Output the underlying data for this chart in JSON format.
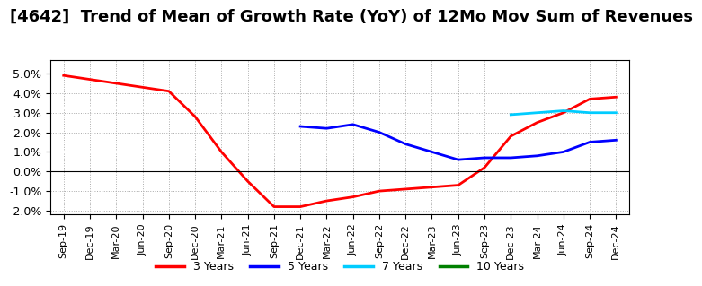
{
  "title": "[4642]  Trend of Mean of Growth Rate (YoY) of 12Mo Mov Sum of Revenues",
  "title_fontsize": 13,
  "background_color": "#ffffff",
  "grid_color": "#aaaaaa",
  "ylim": [
    -0.022,
    0.057
  ],
  "yticks": [
    -0.02,
    -0.01,
    0.0,
    0.01,
    0.02,
    0.03,
    0.04,
    0.05
  ],
  "x_ticks_labels": [
    "Sep-19",
    "Dec-19",
    "Mar-20",
    "Jun-20",
    "Sep-20",
    "Dec-20",
    "Mar-21",
    "Jun-21",
    "Sep-21",
    "Dec-21",
    "Mar-22",
    "Jun-22",
    "Sep-22",
    "Dec-22",
    "Mar-23",
    "Jun-23",
    "Sep-23",
    "Dec-23",
    "Mar-24",
    "Jun-24",
    "Sep-24",
    "Dec-24"
  ],
  "series": {
    "3 Years": {
      "color": "#ff0000",
      "x": [
        "Sep-19",
        "Dec-19",
        "Mar-20",
        "Jun-20",
        "Sep-20",
        "Dec-20",
        "Mar-21",
        "Jun-21",
        "Sep-21",
        "Dec-21",
        "Mar-22",
        "Jun-22",
        "Sep-22",
        "Dec-22",
        "Mar-23",
        "Jun-23",
        "Sep-23",
        "Dec-23",
        "Mar-24",
        "Jun-24",
        "Sep-24",
        "Dec-24"
      ],
      "y": [
        0.049,
        0.047,
        0.045,
        0.043,
        0.041,
        0.028,
        0.01,
        -0.005,
        -0.018,
        -0.018,
        -0.015,
        -0.013,
        -0.01,
        -0.009,
        -0.008,
        -0.007,
        0.002,
        0.018,
        0.025,
        0.03,
        0.037,
        0.038
      ]
    },
    "5 Years": {
      "color": "#0000ff",
      "x": [
        "Dec-21",
        "Mar-22",
        "Jun-22",
        "Sep-22",
        "Dec-22",
        "Mar-23",
        "Jun-23",
        "Sep-23",
        "Dec-23",
        "Mar-24",
        "Jun-24",
        "Sep-24",
        "Dec-24"
      ],
      "y": [
        0.023,
        0.022,
        0.024,
        0.02,
        0.014,
        0.01,
        0.006,
        0.007,
        0.007,
        0.008,
        0.01,
        0.015,
        0.016
      ]
    },
    "7 Years": {
      "color": "#00ccff",
      "x": [
        "Dec-23",
        "Mar-24",
        "Jun-24",
        "Sep-24",
        "Dec-24"
      ],
      "y": [
        0.029,
        0.03,
        0.031,
        0.03,
        0.03
      ]
    },
    "10 Years": {
      "color": "#008000",
      "x": [],
      "y": []
    }
  },
  "legend_labels": [
    "3 Years",
    "5 Years",
    "7 Years",
    "10 Years"
  ],
  "legend_colors": [
    "#ff0000",
    "#0000ff",
    "#00ccff",
    "#008000"
  ]
}
